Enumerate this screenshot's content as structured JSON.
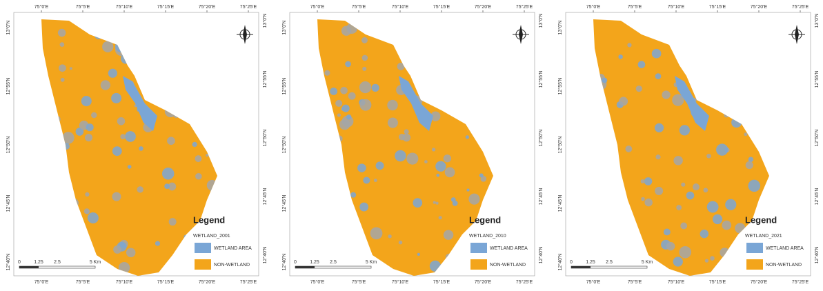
{
  "grid_labels": {
    "top": [
      "75°0'E",
      "75°5'E",
      "75°10'E",
      "75°15'E",
      "75°20'E",
      "75°25'E"
    ],
    "bottom": [
      "75°0'E",
      "75°5'E",
      "75°10'E",
      "75°15'E",
      "75°20'E",
      "75°25'E"
    ],
    "left": [
      "13°0'N",
      "12°55'N",
      "12°50'N",
      "12°45'N",
      "12°40'N"
    ],
    "right": [
      "13°0'N",
      "12°55'N",
      "12°50'N",
      "12°45'N",
      "12°40'N"
    ]
  },
  "scale_labels": [
    "0",
    "1.25",
    "2.5",
    "5 Km"
  ],
  "legend": {
    "title": "Legend",
    "colors": {
      "wetland": "#7aa6d6",
      "non_wetland": "#f3a51b"
    }
  },
  "panels": [
    {
      "field": "WETLAND_2001",
      "items": [
        "WETLAND AREA",
        "NON-WETLAND"
      ]
    },
    {
      "field": "WETLAND_2010",
      "items": [
        "WETLAND AREA",
        "NON-WETLAND"
      ]
    },
    {
      "field": "WETLAND_2021",
      "items": [
        "WETLAND AREA",
        "NON-WETLAND"
      ]
    }
  ]
}
